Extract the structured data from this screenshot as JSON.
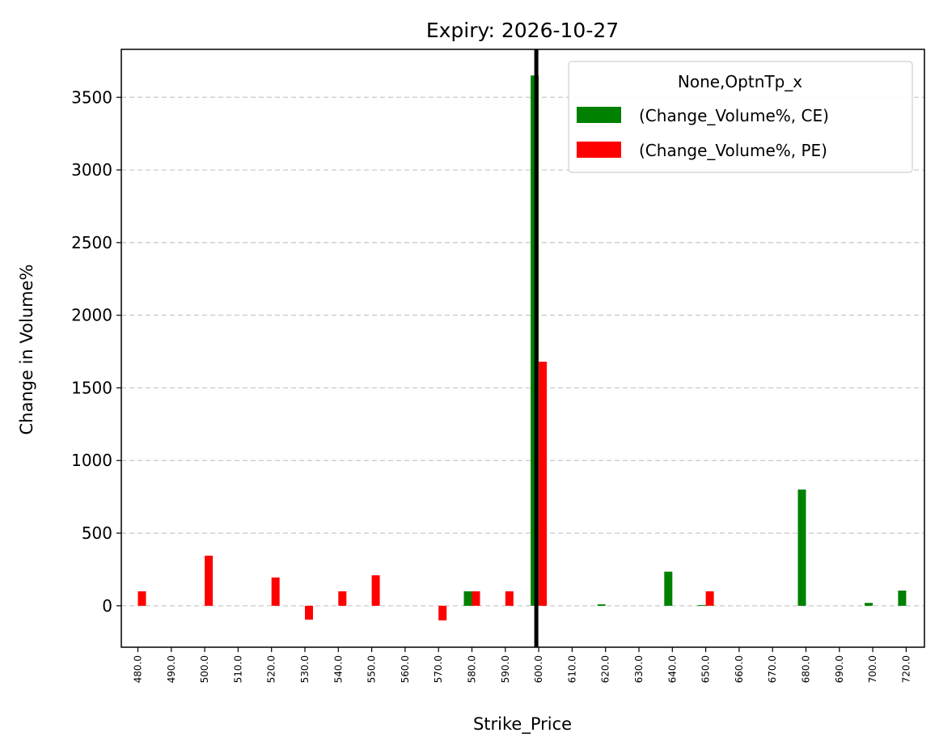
{
  "chart_data": {
    "type": "bar",
    "title": "Expiry: 2026-10-27",
    "xlabel": "Strike_Price",
    "ylabel": "Change in Volume%",
    "categories": [
      "480.0",
      "490.0",
      "500.0",
      "510.0",
      "520.0",
      "530.0",
      "540.0",
      "550.0",
      "560.0",
      "570.0",
      "580.0",
      "590.0",
      "600.0",
      "610.0",
      "620.0",
      "630.0",
      "640.0",
      "650.0",
      "660.0",
      "670.0",
      "680.0",
      "690.0",
      "700.0",
      "720.0"
    ],
    "series": [
      {
        "name": "(Change_Volume%, CE)",
        "color": "#008000",
        "values": [
          0,
          0,
          0,
          0,
          0,
          0,
          0,
          0,
          0,
          0,
          100,
          0,
          3650,
          0,
          10,
          0,
          235,
          5,
          0,
          0,
          800,
          0,
          20,
          105
        ]
      },
      {
        "name": "(Change_Volume%, PE)",
        "color": "#ff0000",
        "values": [
          100,
          0,
          345,
          0,
          195,
          -95,
          100,
          210,
          0,
          -100,
          100,
          100,
          1680,
          0,
          0,
          0,
          0,
          100,
          0,
          0,
          0,
          0,
          0,
          0
        ]
      }
    ],
    "yticks": [
      0,
      500,
      1000,
      1500,
      2000,
      2500,
      3000,
      3500
    ],
    "ylim": [
      -285,
      3830
    ],
    "grid": "y",
    "legend": {
      "title": "None,OptnTp_x",
      "placement": "top-right"
    },
    "vertical_marker": {
      "category": "600.0",
      "color": "#000000"
    }
  }
}
